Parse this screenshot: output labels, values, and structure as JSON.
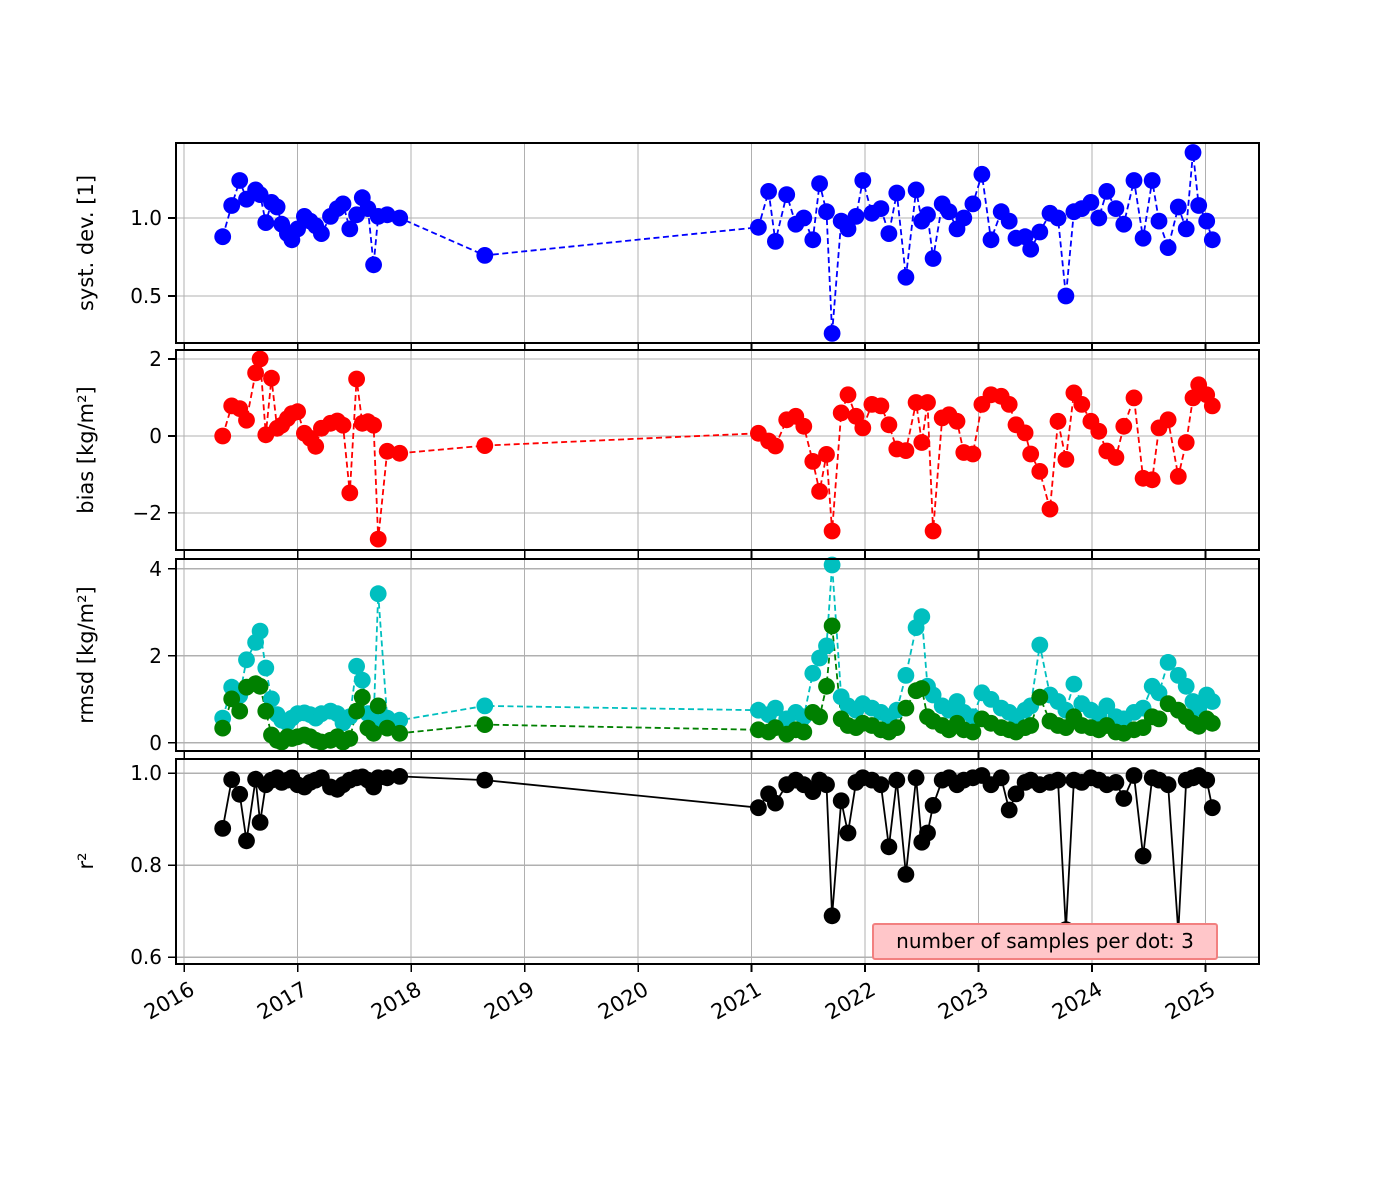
{
  "figure": {
    "background": "#ffffff",
    "annotation": {
      "text": "number of samples per dot: 3",
      "facecolor": "#ffc6c9",
      "edgecolor": "#f28080",
      "textcolor": "#000000"
    }
  },
  "x_axis": {
    "ticklabels": [
      "2016",
      "2017",
      "2018",
      "2019",
      "2020",
      "2021",
      "2022",
      "2023",
      "2024",
      "2025"
    ],
    "tick_values": [
      2016,
      2017,
      2018,
      2019,
      2020,
      2021,
      2022,
      2023,
      2024,
      2025
    ],
    "xlim": [
      2015.92,
      2025.48
    ],
    "grid": true,
    "x_values": [
      2016.34,
      2016.42,
      2016.49,
      2016.55,
      2016.63,
      2016.67,
      2016.72,
      2016.77,
      2016.82,
      2016.86,
      2016.91,
      2016.95,
      2017.0,
      2017.06,
      2017.11,
      2017.16,
      2017.21,
      2017.29,
      2017.35,
      2017.4,
      2017.46,
      2017.52,
      2017.57,
      2017.62,
      2017.67,
      2017.71,
      2017.79,
      2017.9,
      2018.65,
      2021.06,
      2021.15,
      2021.21,
      2021.31,
      2021.39,
      2021.46,
      2021.54,
      2021.6,
      2021.66,
      2021.71,
      2021.79,
      2021.85,
      2021.92,
      2021.98,
      2022.06,
      2022.14,
      2022.21,
      2022.28,
      2022.36,
      2022.45,
      2022.5,
      2022.55,
      2022.6,
      2022.68,
      2022.74,
      2022.81,
      2022.87,
      2022.95,
      2023.03,
      2023.11,
      2023.2,
      2023.27,
      2023.33,
      2023.41,
      2023.46,
      2023.54,
      2023.63,
      2023.7,
      2023.77,
      2023.84,
      2023.91,
      2023.99,
      2024.06,
      2024.13,
      2024.21,
      2024.28,
      2024.37,
      2024.45,
      2024.53,
      2024.59,
      2024.67,
      2024.76,
      2024.83,
      2024.89,
      2024.94,
      2025.01,
      2025.06
    ]
  },
  "chart_data": [
    {
      "type": "line",
      "ylabel": "syst. dev. [1]",
      "ylim": [
        0.192,
        1.487
      ],
      "grid": true,
      "yticks": [
        {
          "v": 0.5,
          "label": "0.5"
        },
        {
          "v": 1.0,
          "label": "1.0"
        }
      ],
      "series": [
        {
          "name": "syst-dev",
          "color": "#0000ff",
          "linestyle": "dashed",
          "marker": "circle",
          "y": [
            0.88,
            1.08,
            1.24,
            1.12,
            1.18,
            1.15,
            0.97,
            1.1,
            1.07,
            0.96,
            0.9,
            0.86,
            0.93,
            1.01,
            0.98,
            0.95,
            0.9,
            1.01,
            1.06,
            1.09,
            0.93,
            1.02,
            1.13,
            1.06,
            0.7,
            1.01,
            1.02,
            1.0,
            0.76,
            0.94,
            1.17,
            0.85,
            1.15,
            0.96,
            1.0,
            0.86,
            1.22,
            1.04,
            0.26,
            0.98,
            0.93,
            1.01,
            1.24,
            1.03,
            1.06,
            0.9,
            1.16,
            0.62,
            1.18,
            0.98,
            1.02,
            0.74,
            1.09,
            1.04,
            0.93,
            1.0,
            1.09,
            1.28,
            0.86,
            1.04,
            0.98,
            0.87,
            0.88,
            0.8,
            0.91,
            1.03,
            1.0,
            0.5,
            1.04,
            1.06,
            1.1,
            1.0,
            1.17,
            1.06,
            0.96,
            1.24,
            0.87,
            1.24,
            0.98,
            0.81,
            1.07,
            0.93,
            1.42,
            1.08,
            0.98,
            0.86
          ]
        }
      ]
    },
    {
      "type": "line",
      "ylabel": "bias [kg/m²]",
      "ylim": [
        -2.99,
        2.26
      ],
      "grid": true,
      "yticks": [
        {
          "v": -2,
          "label": "−2"
        },
        {
          "v": 0,
          "label": "0"
        },
        {
          "v": 2,
          "label": "2"
        }
      ],
      "series": [
        {
          "name": "bias",
          "color": "#ff0000",
          "linestyle": "dashed",
          "marker": "circle",
          "y": [
            0.0,
            0.78,
            0.71,
            0.41,
            1.64,
            2.0,
            0.03,
            1.5,
            0.2,
            0.28,
            0.45,
            0.58,
            0.63,
            0.07,
            -0.06,
            -0.27,
            0.2,
            0.33,
            0.39,
            0.28,
            -1.48,
            1.48,
            0.33,
            0.37,
            0.28,
            -2.68,
            -0.4,
            -0.45,
            -0.25,
            0.07,
            -0.13,
            -0.26,
            0.42,
            0.51,
            0.25,
            -0.66,
            -1.44,
            -0.48,
            -2.47,
            0.6,
            1.07,
            0.51,
            0.21,
            0.82,
            0.78,
            0.29,
            -0.34,
            -0.38,
            0.87,
            -0.17,
            0.87,
            -2.47,
            0.47,
            0.55,
            0.38,
            -0.43,
            -0.47,
            0.82,
            1.07,
            1.03,
            0.82,
            0.29,
            0.08,
            -0.47,
            -0.92,
            -1.9,
            0.38,
            -0.61,
            1.12,
            0.82,
            0.38,
            0.12,
            -0.39,
            -0.56,
            0.25,
            0.99,
            -1.1,
            -1.14,
            0.21,
            0.42,
            -1.05,
            -0.17,
            0.99,
            1.33,
            1.07,
            0.78
          ]
        }
      ]
    },
    {
      "type": "line",
      "ylabel": "rmsd [kg/m²]",
      "ylim": [
        -0.21,
        4.25
      ],
      "grid": true,
      "yticks": [
        {
          "v": 0,
          "label": "0"
        },
        {
          "v": 2,
          "label": "2"
        },
        {
          "v": 4,
          "label": "4"
        }
      ],
      "series": [
        {
          "name": "rmsd-cyan",
          "color": "#00bfbf",
          "linestyle": "dashed",
          "marker": "circle",
          "y": [
            0.57,
            1.28,
            1.09,
            1.91,
            2.31,
            2.57,
            1.72,
            1.01,
            0.65,
            0.52,
            0.46,
            0.57,
            0.67,
            0.69,
            0.65,
            0.57,
            0.67,
            0.73,
            0.67,
            0.46,
            0.6,
            1.76,
            1.44,
            0.67,
            0.52,
            3.43,
            0.57,
            0.52,
            0.85,
            0.75,
            0.65,
            0.8,
            0.55,
            0.7,
            0.6,
            1.6,
            1.95,
            2.23,
            4.09,
            1.06,
            0.85,
            0.75,
            0.9,
            0.8,
            0.7,
            0.6,
            0.75,
            1.55,
            2.65,
            2.9,
            1.3,
            1.1,
            0.85,
            0.75,
            0.95,
            0.7,
            0.6,
            1.15,
            1.0,
            0.8,
            0.7,
            0.6,
            0.75,
            0.85,
            2.25,
            1.1,
            0.95,
            0.75,
            1.35,
            0.9,
            0.75,
            0.65,
            0.85,
            0.6,
            0.55,
            0.7,
            0.8,
            1.3,
            1.15,
            1.85,
            1.55,
            1.3,
            0.95,
            0.8,
            1.1,
            0.95
          ]
        },
        {
          "name": "rmsd-green",
          "color": "#008000",
          "linestyle": "dashed",
          "marker": "circle",
          "y": [
            0.34,
            1.01,
            0.73,
            1.28,
            1.36,
            1.3,
            0.73,
            0.18,
            0.06,
            0.02,
            0.14,
            0.1,
            0.14,
            0.18,
            0.14,
            0.06,
            0.02,
            0.06,
            0.14,
            0.02,
            0.1,
            0.73,
            1.05,
            0.34,
            0.22,
            0.85,
            0.34,
            0.22,
            0.42,
            0.3,
            0.25,
            0.35,
            0.2,
            0.3,
            0.25,
            0.7,
            0.6,
            1.3,
            2.69,
            0.55,
            0.4,
            0.35,
            0.45,
            0.4,
            0.3,
            0.25,
            0.35,
            0.8,
            1.2,
            1.25,
            0.6,
            0.5,
            0.4,
            0.3,
            0.45,
            0.3,
            0.25,
            0.55,
            0.45,
            0.35,
            0.3,
            0.25,
            0.35,
            0.4,
            1.05,
            0.5,
            0.4,
            0.35,
            0.6,
            0.4,
            0.35,
            0.3,
            0.4,
            0.25,
            0.22,
            0.3,
            0.35,
            0.6,
            0.55,
            0.9,
            0.75,
            0.6,
            0.45,
            0.38,
            0.55,
            0.45
          ]
        }
      ]
    },
    {
      "type": "line",
      "ylabel": "r²",
      "ylim": [
        0.583,
        1.033
      ],
      "grid": true,
      "yticks": [
        {
          "v": 0.6,
          "label": "0.6"
        },
        {
          "v": 0.8,
          "label": "0.8"
        },
        {
          "v": 1.0,
          "label": "1.0"
        }
      ],
      "series": [
        {
          "name": "r2",
          "color": "#000000",
          "linestyle": "solid",
          "marker": "circle",
          "y": [
            0.88,
            0.986,
            0.954,
            0.853,
            0.987,
            0.893,
            0.975,
            0.985,
            0.99,
            0.98,
            0.985,
            0.99,
            0.975,
            0.97,
            0.98,
            0.985,
            0.99,
            0.97,
            0.965,
            0.975,
            0.985,
            0.99,
            0.992,
            0.985,
            0.97,
            0.99,
            0.99,
            0.993,
            0.985,
            0.925,
            0.955,
            0.935,
            0.975,
            0.985,
            0.975,
            0.96,
            0.985,
            0.975,
            0.69,
            0.94,
            0.87,
            0.98,
            0.99,
            0.985,
            0.975,
            0.84,
            0.985,
            0.78,
            0.99,
            0.85,
            0.87,
            0.93,
            0.985,
            0.99,
            0.975,
            0.985,
            0.99,
            0.995,
            0.975,
            0.99,
            0.92,
            0.955,
            0.98,
            0.985,
            0.975,
            0.98,
            0.985,
            0.66,
            0.985,
            0.98,
            0.99,
            0.985,
            0.975,
            0.98,
            0.945,
            0.995,
            0.82,
            0.99,
            0.985,
            0.975,
            0.655,
            0.985,
            0.99,
            0.995,
            0.985,
            0.925
          ]
        }
      ]
    }
  ]
}
